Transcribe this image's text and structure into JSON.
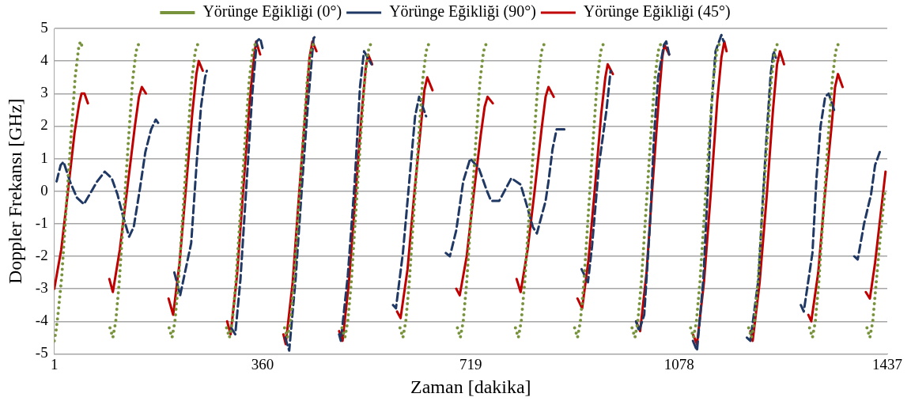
{
  "chart_data": {
    "type": "line",
    "xlabel": "Zaman [dakika]",
    "ylabel": "Doppler Frekansı [GHz]",
    "xlim": [
      1,
      1437
    ],
    "xticks": [
      1,
      360,
      719,
      1078,
      1437
    ],
    "ylim": [
      -5,
      5
    ],
    "yticks": [
      -5,
      -4,
      -3,
      -2,
      -1,
      0,
      1,
      2,
      3,
      4,
      5
    ],
    "grid": "y",
    "legend": "top",
    "marker": "none",
    "series": [
      {
        "name": "Yörünge Eğikliği (0°)",
        "color": "#77933c",
        "line_style": "dotted",
        "x": [
          1,
          4,
          8,
          14,
          22,
          30,
          37,
          43,
          46,
          50,
          70,
          97,
          102,
          107,
          113,
          121,
          129,
          136,
          142,
          146,
          149,
          170,
          199,
          204,
          209,
          215,
          223,
          231,
          238,
          244,
          248,
          251,
          270,
          298,
          303,
          308,
          314,
          322,
          330,
          337,
          343,
          347,
          350,
          370,
          398,
          403,
          408,
          414,
          422,
          430,
          437,
          443,
          447,
          450,
          470,
          497,
          502,
          507,
          513,
          521,
          529,
          536,
          542,
          546,
          549,
          570,
          597,
          602,
          607,
          613,
          621,
          629,
          636,
          642,
          646,
          649,
          670,
          696,
          701,
          706,
          712,
          720,
          728,
          735,
          741,
          745,
          748,
          770,
          796,
          801,
          806,
          812,
          820,
          828,
          835,
          841,
          845,
          848,
          870,
          898,
          903,
          908,
          914,
          922,
          930,
          937,
          943,
          947,
          950,
          970,
          997,
          1002,
          1007,
          1013,
          1021,
          1029,
          1036,
          1042,
          1046,
          1049,
          1070,
          1098,
          1103,
          1108,
          1114,
          1122,
          1130,
          1137,
          1143,
          1147,
          1150,
          1170,
          1198,
          1203,
          1208,
          1214,
          1222,
          1230,
          1237,
          1243,
          1247,
          1250,
          1270,
          1303,
          1308,
          1313,
          1319,
          1327,
          1335,
          1342,
          1348,
          1352,
          1355,
          1375,
          1402,
          1407,
          1412,
          1418,
          1426,
          1433
        ],
        "values": [
          -4.6,
          -4.3,
          -3.7,
          -2.6,
          -0.4,
          1.7,
          3.5,
          4.4,
          4.6,
          4.4,
          null,
          -4.2,
          -4.5,
          -4.0,
          -2.8,
          -0.6,
          1.6,
          3.4,
          4.3,
          4.5,
          4.5,
          null,
          -4.2,
          -4.5,
          -4.0,
          -2.8,
          -0.6,
          1.6,
          3.4,
          4.3,
          4.5,
          4.5,
          null,
          -4.2,
          -4.5,
          -4.0,
          -2.8,
          -0.6,
          1.6,
          3.4,
          4.3,
          4.5,
          4.5,
          null,
          -4.2,
          -4.5,
          -4.0,
          -2.8,
          -0.6,
          1.6,
          3.4,
          4.3,
          4.5,
          4.5,
          null,
          -4.2,
          -4.5,
          -4.0,
          -2.8,
          -0.6,
          1.6,
          3.4,
          4.3,
          4.5,
          4.5,
          null,
          -4.2,
          -4.5,
          -4.0,
          -2.8,
          -0.6,
          1.6,
          3.4,
          4.3,
          4.5,
          4.5,
          null,
          -4.2,
          -4.5,
          -4.0,
          -2.8,
          -0.6,
          1.6,
          3.4,
          4.3,
          4.5,
          4.5,
          null,
          -4.2,
          -4.5,
          -4.0,
          -2.8,
          -0.6,
          1.6,
          3.4,
          4.3,
          4.5,
          4.5,
          null,
          -4.2,
          -4.5,
          -4.0,
          -2.8,
          -0.6,
          1.6,
          3.4,
          4.3,
          4.5,
          4.5,
          null,
          -4.2,
          -4.5,
          -4.0,
          -2.8,
          -0.6,
          1.6,
          3.4,
          4.3,
          4.5,
          4.5,
          null,
          -4.2,
          -4.5,
          -4.0,
          -2.8,
          -0.6,
          1.6,
          3.4,
          4.3,
          4.5,
          4.5,
          null,
          -4.2,
          -4.5,
          -4.0,
          -2.8,
          -0.6,
          1.6,
          3.4,
          4.3,
          4.5,
          4.5,
          null,
          -4.2,
          -4.5,
          -4.0,
          -2.8,
          -0.6,
          1.6,
          3.4,
          4.3,
          4.5,
          4.5,
          null,
          -4.2,
          -4.5,
          -4.0,
          -2.8,
          -1.2,
          0.0
        ]
      },
      {
        "name": "Yörünge Eğikliği (90°)",
        "color": "#1f3864",
        "line_style": "dashed",
        "x": [
          5,
          12,
          17,
          28,
          40,
          52,
          62,
          75,
          88,
          100,
          110,
          120,
          130,
          138,
          148,
          158,
          168,
          176,
          180,
          195,
          208,
          218,
          237,
          247,
          254,
          261,
          264,
          285,
          306,
          313,
          322,
          332,
          342,
          350,
          356,
          360,
          380,
          399,
          406,
          417,
          429,
          438,
          448,
          453,
          470,
          492,
          495,
          507,
          519,
          528,
          535,
          548,
          570,
          585,
          590,
          602,
          613,
          623,
          630,
          642,
          660,
          676,
          683,
          694,
          706,
          718,
          733,
          747,
          754,
          768,
          789,
          805,
          815,
          826,
          833,
          848,
          853,
          860,
          867,
          882,
          895,
          910,
          921,
          928,
          940,
          953,
          960,
          985,
          1004,
          1009,
          1018,
          1028,
          1035,
          1042,
          1052,
          1056,
          1061,
          1080,
          1102,
          1109,
          1120,
          1127,
          1134,
          1141,
          1151,
          1155,
          1175,
          1195,
          1201,
          1215,
          1222,
          1229,
          1236,
          1241,
          1245,
          1270,
          1288,
          1293,
          1308,
          1315,
          1322,
          1330,
          1336,
          1347,
          1365,
          1380,
          1386,
          1397,
          1409,
          1416,
          1426
        ],
        "values": [
          0.3,
          0.8,
          0.9,
          0.3,
          -0.2,
          -0.4,
          -0.1,
          0.3,
          0.6,
          0.4,
          -0.1,
          -0.8,
          -1.4,
          -1.1,
          0.0,
          1.2,
          1.9,
          2.2,
          2.1,
          null,
          -2.5,
          -3.2,
          -1.6,
          1.0,
          2.6,
          3.5,
          3.7,
          null,
          -4.2,
          -4.4,
          -2.7,
          0.1,
          2.9,
          4.6,
          4.7,
          4.4,
          null,
          -4.5,
          -4.9,
          -2.7,
          0.4,
          2.6,
          4.7,
          4.8,
          null,
          -4.4,
          -4.6,
          -2.6,
          0.3,
          3.2,
          4.3,
          3.9,
          null,
          -3.5,
          -3.6,
          -1.9,
          0.3,
          2.3,
          2.9,
          2.3,
          null,
          -1.9,
          -2.0,
          -1.2,
          0.3,
          1.0,
          0.7,
          0.0,
          -0.3,
          -0.3,
          0.4,
          0.2,
          -0.4,
          -1.1,
          -1.3,
          -0.3,
          0.3,
          1.3,
          1.9,
          1.9,
          null,
          -2.4,
          -2.8,
          -1.7,
          0.8,
          2.5,
          3.7,
          null,
          -4.0,
          -4.3,
          -3.8,
          -1.0,
          1.7,
          3.5,
          4.5,
          4.6,
          4.2,
          null,
          -4.6,
          -4.9,
          -2.7,
          -0.1,
          2.6,
          4.3,
          4.8,
          4.6,
          null,
          -4.5,
          -4.6,
          -2.7,
          -0.4,
          1.7,
          3.6,
          4.3,
          4.1,
          null,
          -3.5,
          -3.7,
          -1.9,
          0.4,
          2.0,
          2.9,
          3.0,
          2.4,
          null,
          -2.0,
          -2.1,
          -1.0,
          -0.1,
          0.8,
          1.3
        ]
      },
      {
        "name": "Yörünge Eğikliği (45°)",
        "color": "#c00000",
        "line_style": "solid",
        "x": [
          1,
          13,
          24,
          36,
          44,
          48,
          53,
          59,
          80,
          96,
          102,
          114,
          127,
          140,
          147,
          152,
          159,
          180,
          198,
          206,
          217,
          228,
          239,
          246,
          250,
          257,
          280,
          299,
          305,
          316,
          327,
          338,
          345,
          349,
          356,
          380,
          396,
          400,
          412,
          423,
          435,
          441,
          446,
          453,
          475,
          492,
          498,
          509,
          520,
          531,
          538,
          542,
          549,
          570,
          592,
          598,
          610,
          621,
          633,
          639,
          644,
          653,
          675,
          694,
          700,
          712,
          724,
          736,
          743,
          748,
          757,
          780,
          798,
          805,
          817,
          829,
          841,
          848,
          853,
          862,
          880,
          903,
          911,
          922,
          933,
          944,
          951,
          955,
          964,
          985,
          1004,
          1011,
          1022,
          1032,
          1043,
          1049,
          1053,
          1061,
          1080,
          1102,
          1109,
          1121,
          1133,
          1144,
          1151,
          1156,
          1160,
          1180,
          1201,
          1205,
          1217,
          1229,
          1240,
          1247,
          1252,
          1259,
          1280,
          1301,
          1306,
          1318,
          1329,
          1341,
          1347,
          1352,
          1360,
          1380,
          1400,
          1407,
          1416,
          1425,
          1434
        ],
        "values": [
          -3.0,
          -1.8,
          -0.1,
          1.8,
          2.7,
          3.0,
          3.0,
          2.7,
          null,
          -2.7,
          -3.1,
          -1.8,
          0.1,
          2.0,
          2.9,
          3.2,
          3.0,
          null,
          -3.3,
          -3.8,
          -2.2,
          0.1,
          2.4,
          3.6,
          4.0,
          3.7,
          null,
          -4.0,
          -4.4,
          -2.6,
          0.1,
          2.8,
          4.1,
          4.6,
          4.2,
          null,
          -4.4,
          -4.7,
          -2.8,
          -0.1,
          2.7,
          4.1,
          4.6,
          4.3,
          null,
          -4.3,
          -4.6,
          -2.8,
          -0.2,
          2.4,
          3.8,
          4.2,
          3.9,
          null,
          -3.7,
          -3.9,
          -2.4,
          -0.2,
          2.0,
          3.1,
          3.5,
          3.1,
          null,
          -3.0,
          -3.2,
          -2.0,
          -0.1,
          1.7,
          2.6,
          2.9,
          2.7,
          null,
          -2.7,
          -3.1,
          -1.8,
          0.0,
          1.9,
          2.9,
          3.2,
          2.9,
          null,
          -3.3,
          -3.6,
          -2.1,
          0.1,
          2.4,
          3.5,
          3.9,
          3.6,
          null,
          -4.0,
          -4.3,
          -2.5,
          0.1,
          2.8,
          4.1,
          4.5,
          4.2,
          null,
          -4.4,
          -4.7,
          -2.8,
          0.0,
          2.8,
          4.1,
          4.6,
          4.3,
          null,
          -4.3,
          -4.6,
          -2.8,
          -0.2,
          2.5,
          3.9,
          4.3,
          3.9,
          null,
          -3.8,
          -4.0,
          -2.5,
          -0.2,
          2.0,
          3.2,
          3.6,
          3.2,
          null,
          -3.1,
          -3.3,
          -2.2,
          -0.8,
          0.6
        ]
      }
    ]
  }
}
